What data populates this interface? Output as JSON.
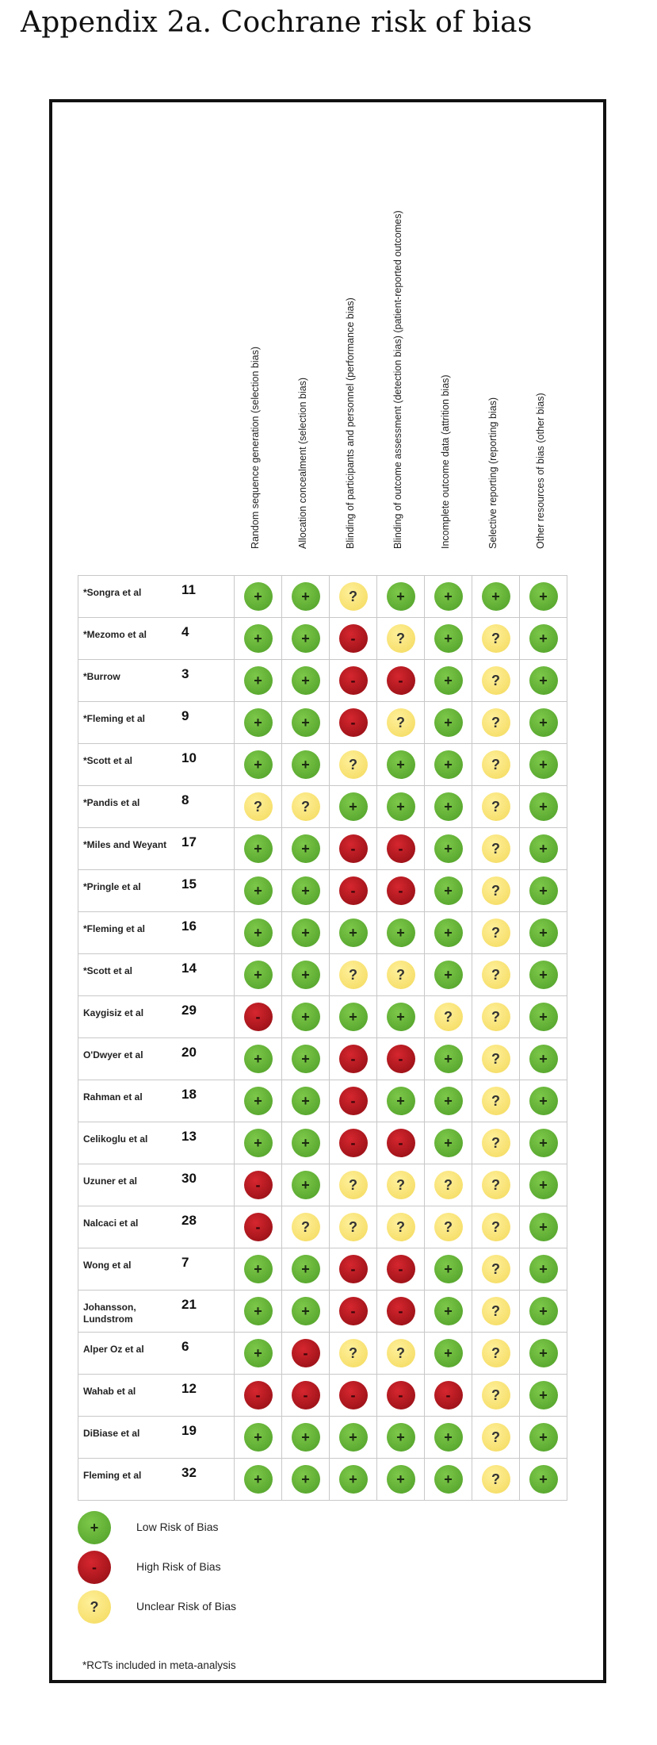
{
  "title": "Appendix 2a. Cochrane risk of bias",
  "columns": [
    "Random sequence generation (selection bias)",
    "Allocation concealment (selection bias)",
    "Blinding of participants and personnel (performance bias)",
    "Blinding of outcome assessment (detection bias) (patient-reported outcomes)",
    "Incomplete outcome data (attrition bias)",
    "Selective reporting (reporting bias)",
    "Other resources of bias (other bias)"
  ],
  "symbols": {
    "low": "+",
    "high": "-",
    "unclear": "?"
  },
  "colors": {
    "low": "#5fb030",
    "high": "#b5161d",
    "unclear": "#f7e27a"
  },
  "studies": [
    {
      "name": "*Songra et al",
      "ref": "11",
      "ratings": [
        "low",
        "low",
        "unclear",
        "low",
        "low",
        "low",
        "low"
      ]
    },
    {
      "name": "*Mezomo et al",
      "ref": "4",
      "ratings": [
        "low",
        "low",
        "high",
        "unclear",
        "low",
        "unclear",
        "low"
      ]
    },
    {
      "name": "*Burrow",
      "ref": "3",
      "ratings": [
        "low",
        "low",
        "high",
        "high",
        "low",
        "unclear",
        "low"
      ]
    },
    {
      "name": "*Fleming et al",
      "ref": "9",
      "ratings": [
        "low",
        "low",
        "high",
        "unclear",
        "low",
        "unclear",
        "low"
      ]
    },
    {
      "name": "*Scott et al",
      "ref": "10",
      "ratings": [
        "low",
        "low",
        "unclear",
        "low",
        "low",
        "unclear",
        "low"
      ]
    },
    {
      "name": "*Pandis et al",
      "ref": "8",
      "ratings": [
        "unclear",
        "unclear",
        "low",
        "low",
        "low",
        "unclear",
        "low"
      ]
    },
    {
      "name": "*Miles and Weyant",
      "ref": "17",
      "ratings": [
        "low",
        "low",
        "high",
        "high",
        "low",
        "unclear",
        "low"
      ]
    },
    {
      "name": "*Pringle et al",
      "ref": "15",
      "ratings": [
        "low",
        "low",
        "high",
        "high",
        "low",
        "unclear",
        "low"
      ]
    },
    {
      "name": "*Fleming et al",
      "ref": "16",
      "ratings": [
        "low",
        "low",
        "low",
        "low",
        "low",
        "unclear",
        "low"
      ]
    },
    {
      "name": "*Scott et al",
      "ref": "14",
      "ratings": [
        "low",
        "low",
        "unclear",
        "unclear",
        "low",
        "unclear",
        "low"
      ]
    },
    {
      "name": "Kaygisiz et al",
      "ref": "29",
      "ratings": [
        "high",
        "low",
        "low",
        "low",
        "unclear",
        "unclear",
        "low"
      ]
    },
    {
      "name": "O'Dwyer et al",
      "ref": "20",
      "ratings": [
        "low",
        "low",
        "high",
        "high",
        "low",
        "unclear",
        "low"
      ]
    },
    {
      "name": "Rahman et al",
      "ref": "18",
      "ratings": [
        "low",
        "low",
        "high",
        "low",
        "low",
        "unclear",
        "low"
      ]
    },
    {
      "name": "Celikoglu et al",
      "ref": "13",
      "ratings": [
        "low",
        "low",
        "high",
        "high",
        "low",
        "unclear",
        "low"
      ]
    },
    {
      "name": "Uzuner et al",
      "ref": "30",
      "ratings": [
        "high",
        "low",
        "unclear",
        "unclear",
        "unclear",
        "unclear",
        "low"
      ]
    },
    {
      "name": "Nalcaci et al",
      "ref": "28",
      "ratings": [
        "high",
        "unclear",
        "unclear",
        "unclear",
        "unclear",
        "unclear",
        "low"
      ]
    },
    {
      "name": "Wong et al",
      "ref": "7",
      "ratings": [
        "low",
        "low",
        "high",
        "high",
        "low",
        "unclear",
        "low"
      ]
    },
    {
      "name": "Johansson, Lundstrom",
      "ref": "21",
      "ratings": [
        "low",
        "low",
        "high",
        "high",
        "low",
        "unclear",
        "low"
      ]
    },
    {
      "name": "Alper Oz et al",
      "ref": "6",
      "ratings": [
        "low",
        "high",
        "unclear",
        "unclear",
        "low",
        "unclear",
        "low"
      ]
    },
    {
      "name": "Wahab et al",
      "ref": "12",
      "ratings": [
        "high",
        "high",
        "high",
        "high",
        "high",
        "unclear",
        "low"
      ]
    },
    {
      "name": "DiBiase et al",
      "ref": "19",
      "ratings": [
        "low",
        "low",
        "low",
        "low",
        "low",
        "unclear",
        "low"
      ]
    },
    {
      "name": "Fleming et al",
      "ref": "32",
      "ratings": [
        "low",
        "low",
        "low",
        "low",
        "low",
        "unclear",
        "low"
      ]
    }
  ],
  "legend": [
    {
      "rating": "low",
      "label": "Low Risk of Bias"
    },
    {
      "rating": "high",
      "label": "High Risk of Bias"
    },
    {
      "rating": "unclear",
      "label": "Unclear Risk of Bias"
    }
  ],
  "footnote": "*RCTs included in meta-analysis"
}
